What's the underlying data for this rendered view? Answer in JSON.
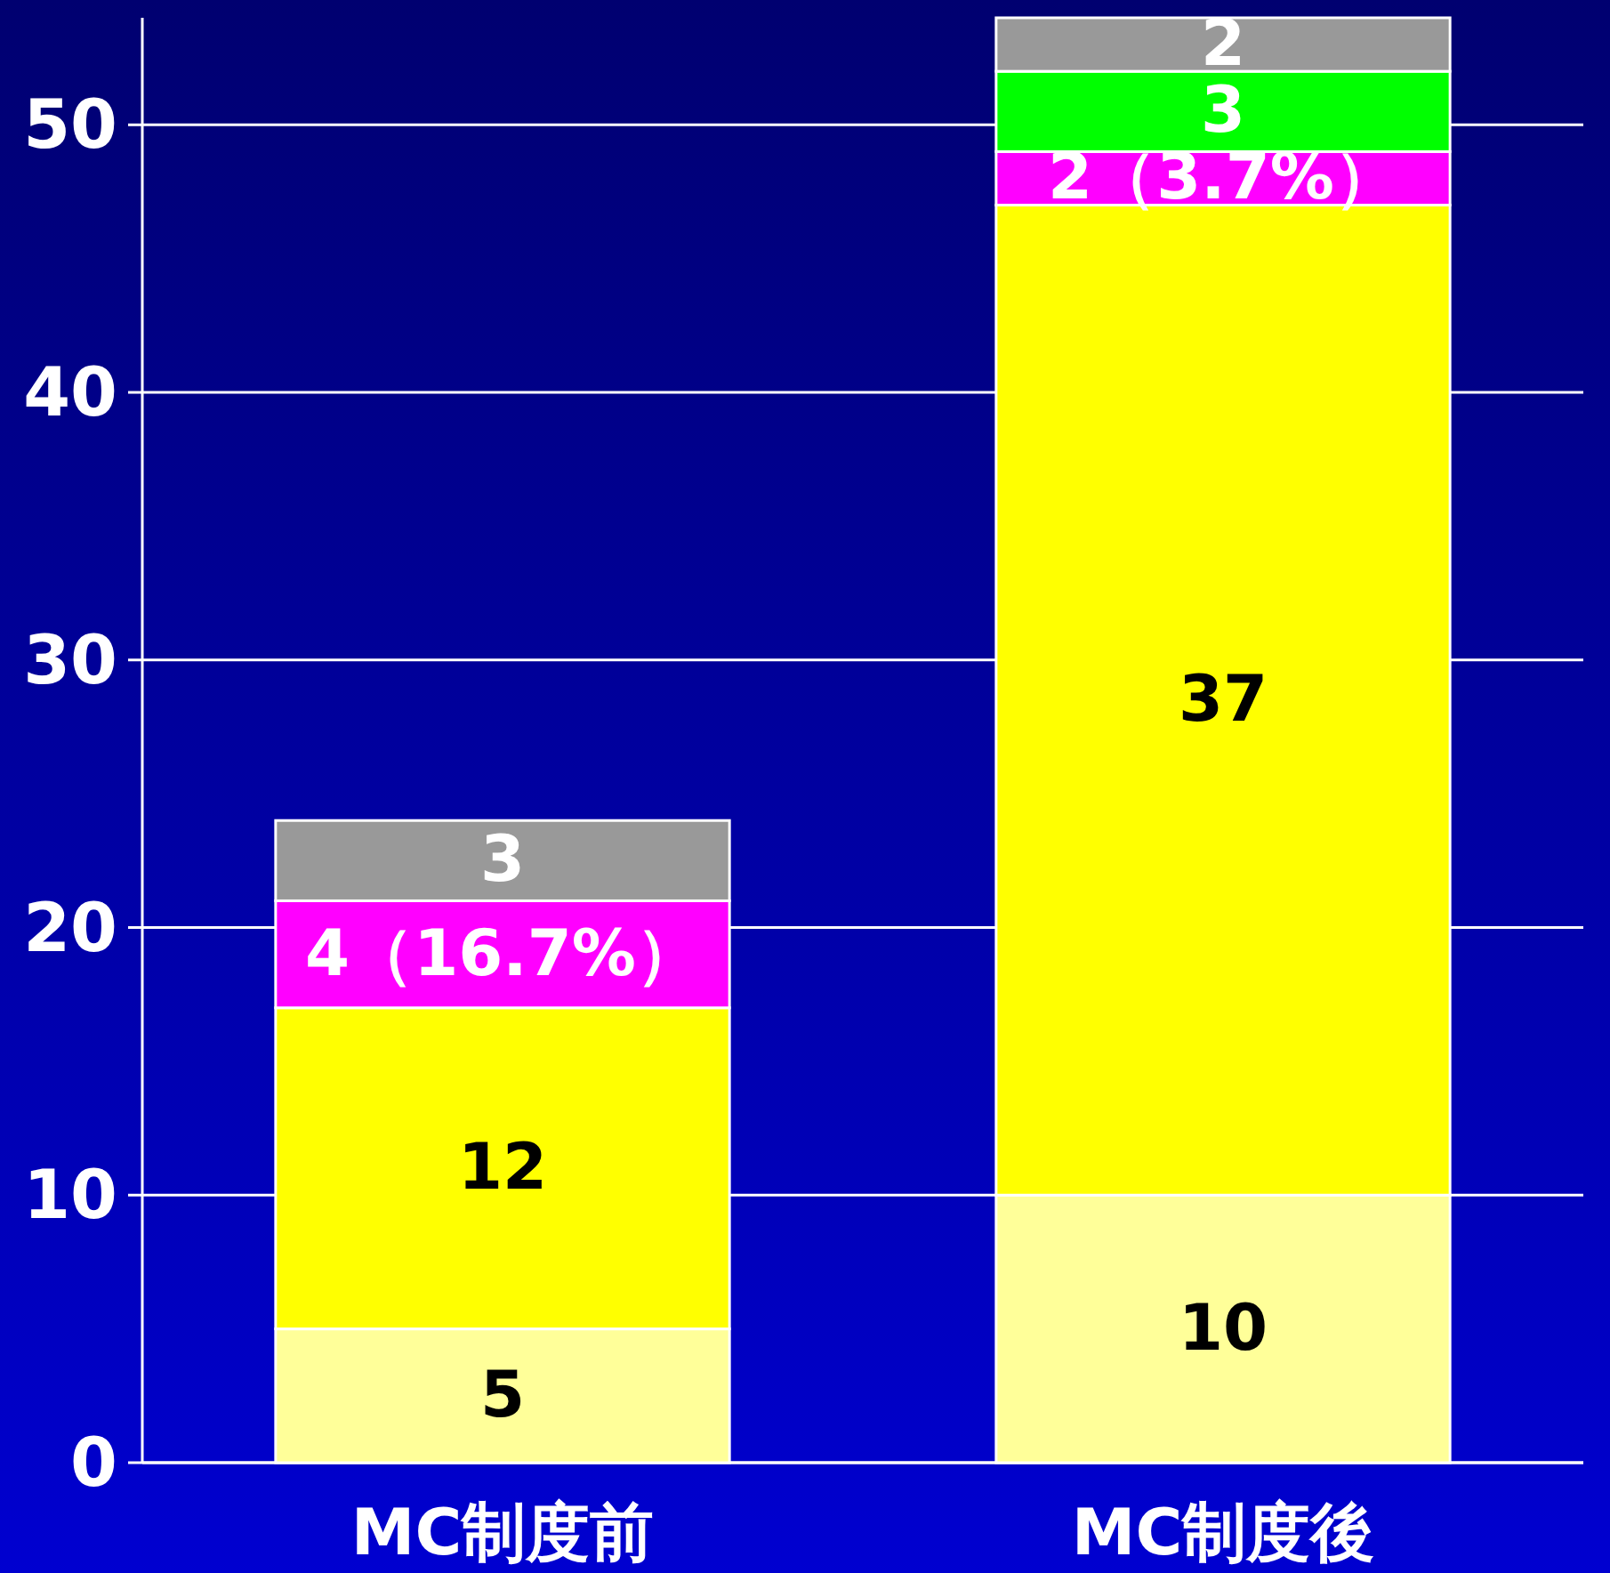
{
  "chart_data": {
    "type": "bar",
    "stacked": true,
    "categories": [
      "MC制度前",
      "MC制度後"
    ],
    "series": [
      {
        "color": "#ffff99",
        "values": [
          5,
          10
        ],
        "value_labels": [
          "5",
          "10"
        ]
      },
      {
        "color": "#ffff00",
        "values": [
          12,
          37
        ],
        "value_labels": [
          "12",
          "37"
        ]
      },
      {
        "color": "#ff00ff",
        "values": [
          4,
          2
        ],
        "value_labels": [
          "4（16.7%）",
          "2（3.7%）"
        ]
      },
      {
        "color": "#00ff00",
        "values": [
          null,
          3
        ],
        "value_labels": [
          null,
          "3"
        ]
      },
      {
        "color": "#999999",
        "values": [
          3,
          2
        ],
        "value_labels": [
          "3",
          "2"
        ]
      }
    ],
    "ylim": [
      0,
      54
    ],
    "yticks": [
      0,
      10,
      20,
      30,
      40,
      50
    ],
    "grid": "y"
  }
}
